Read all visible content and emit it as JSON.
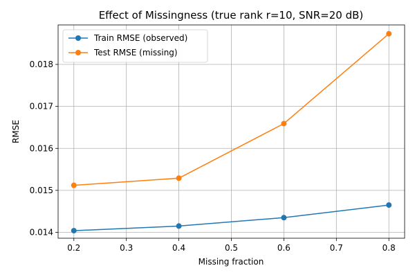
{
  "chart_data": {
    "type": "line",
    "title": "Effect of Missingness (true rank r=10, SNR=20 dB)",
    "xlabel": "Missing fraction",
    "ylabel": "RMSE",
    "xlim": [
      0.17,
      0.83
    ],
    "ylim": [
      0.01386,
      0.01894
    ],
    "x_ticks": [
      0.2,
      0.3,
      0.4,
      0.5,
      0.6,
      0.7,
      0.8
    ],
    "x_tick_labels": [
      "0.2",
      "0.3",
      "0.4",
      "0.5",
      "0.6",
      "0.7",
      "0.8"
    ],
    "y_ticks": [
      0.014,
      0.015,
      0.016,
      0.017,
      0.018
    ],
    "y_tick_labels": [
      "0.014",
      "0.015",
      "0.016",
      "0.017",
      "0.018"
    ],
    "grid": true,
    "legend_position": "upper-left",
    "x": [
      0.2,
      0.4,
      0.6,
      0.8
    ],
    "series": [
      {
        "name": "Train RMSE (observed)",
        "color": "#1f77b4",
        "marker": "circle",
        "values": [
          0.01404,
          0.01415,
          0.01435,
          0.01465
        ]
      },
      {
        "name": "Test RMSE (missing)",
        "color": "#ff7f0e",
        "marker": "circle",
        "values": [
          0.01512,
          0.01529,
          0.01659,
          0.01873
        ]
      }
    ]
  }
}
